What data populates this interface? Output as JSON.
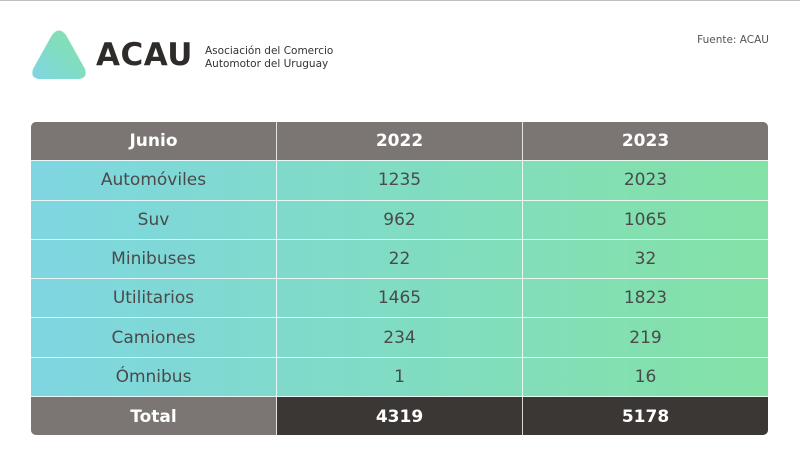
{
  "header": {
    "logo": "ACAU",
    "org_lines": [
      "Asociación del Comercio",
      "Automotor del Uruguay"
    ],
    "source": "Fuente: ACAU"
  },
  "table": {
    "columns": [
      "Junio",
      "2022",
      "2023"
    ],
    "rows": [
      [
        "Automóviles",
        1235,
        2023
      ],
      [
        "Suv",
        962,
        1065
      ],
      [
        "Minibuses",
        22,
        32
      ],
      [
        "Utilitarios",
        1465,
        1823
      ],
      [
        "Camiones",
        234,
        219
      ],
      [
        "Ómnibus",
        1,
        16
      ]
    ],
    "total": [
      "Total",
      4319,
      5178
    ]
  }
}
